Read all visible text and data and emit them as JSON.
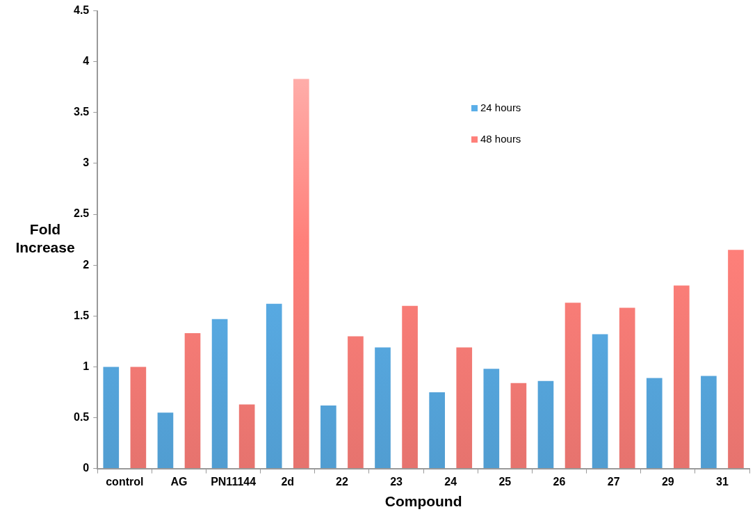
{
  "chart_data": {
    "type": "bar",
    "xlabel": "Compound",
    "ylabel": "Fold Increase",
    "categories": [
      "control",
      "AG",
      "PN11144",
      "2d",
      "22",
      "23",
      "24",
      "25",
      "26",
      "27",
      "29",
      "31"
    ],
    "series": [
      {
        "name": "24 hours",
        "color": "#5aaee8",
        "values": [
          1.0,
          0.55,
          1.47,
          1.62,
          0.62,
          1.19,
          0.75,
          0.98,
          0.86,
          1.32,
          0.89,
          0.91
        ]
      },
      {
        "name": "48 hours",
        "color": "#ff807a",
        "values": [
          1.0,
          1.33,
          0.63,
          3.83,
          1.3,
          1.6,
          1.19,
          0.84,
          1.63,
          1.58,
          1.8,
          2.15
        ]
      }
    ],
    "ylim": [
      0,
      4.5
    ],
    "yticks": [
      0,
      0.5,
      1,
      1.5,
      2,
      2.5,
      3,
      3.5,
      4,
      4.5
    ],
    "grid": false,
    "legend": "top right"
  }
}
